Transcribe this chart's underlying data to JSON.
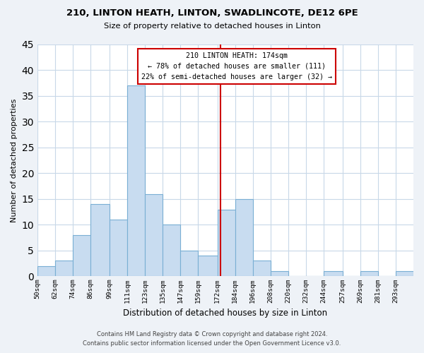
{
  "title": "210, LINTON HEATH, LINTON, SWADLINCOTE, DE12 6PE",
  "subtitle": "Size of property relative to detached houses in Linton",
  "xlabel": "Distribution of detached houses by size in Linton",
  "ylabel": "Number of detached properties",
  "bin_edges": [
    50,
    62,
    74,
    86,
    99,
    111,
    123,
    135,
    147,
    159,
    172,
    184,
    196,
    208,
    220,
    232,
    244,
    257,
    269,
    281,
    293,
    305
  ],
  "bar_heights": [
    2,
    3,
    8,
    14,
    11,
    37,
    16,
    10,
    5,
    4,
    13,
    15,
    3,
    1,
    0,
    0,
    1,
    0,
    1,
    0,
    1
  ],
  "tick_labels": [
    "50sqm",
    "62sqm",
    "74sqm",
    "86sqm",
    "99sqm",
    "111sqm",
    "123sqm",
    "135sqm",
    "147sqm",
    "159sqm",
    "172sqm",
    "184sqm",
    "196sqm",
    "208sqm",
    "220sqm",
    "232sqm",
    "244sqm",
    "257sqm",
    "269sqm",
    "281sqm",
    "293sqm"
  ],
  "bar_color": "#c8dcf0",
  "bar_edge_color": "#7aafd4",
  "vline_x": 174,
  "vline_color": "#cc0000",
  "annotation_title": "210 LINTON HEATH: 174sqm",
  "annotation_line1": "← 78% of detached houses are smaller (111)",
  "annotation_line2": "22% of semi-detached houses are larger (32) →",
  "annotation_box_color": "#ffffff",
  "annotation_box_edge": "#cc0000",
  "ylim": [
    0,
    45
  ],
  "yticks": [
    0,
    5,
    10,
    15,
    20,
    25,
    30,
    35,
    40,
    45
  ],
  "footer_line1": "Contains HM Land Registry data © Crown copyright and database right 2024.",
  "footer_line2": "Contains public sector information licensed under the Open Government Licence v3.0.",
  "background_color": "#eef2f7",
  "plot_bg_color": "#ffffff",
  "grid_color": "#c8d8e8"
}
